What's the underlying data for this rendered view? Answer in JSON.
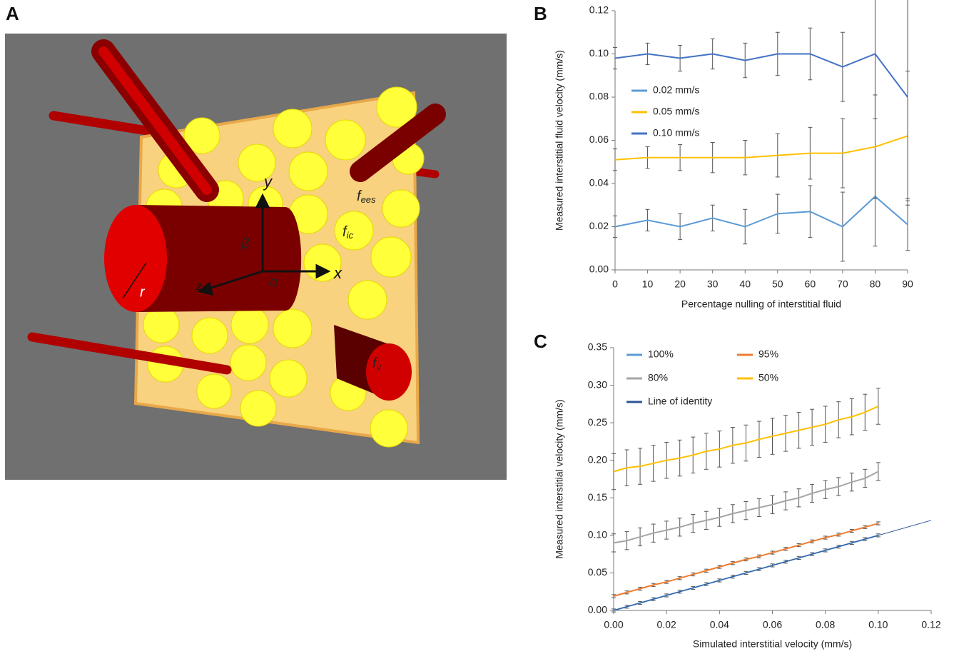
{
  "panel_labels": [
    "A",
    "B",
    "C"
  ],
  "illustration": {
    "axis_x": "x",
    "axis_y": "y",
    "axis_z": "z",
    "angle_beta": "β",
    "angle_alpha": "α",
    "radius": "r",
    "f_ees": {
      "symbol": "f",
      "subscript": "ees"
    },
    "f_ic": {
      "symbol": "f",
      "subscript": "ic"
    },
    "f_v": {
      "symbol": "f",
      "subscript": "v"
    }
  },
  "chart_data": [
    {
      "type": "line",
      "x_label": "Percentage nulling of interstitial fluid",
      "y_label": "Measured interstitial fluid velocity (mm/s)",
      "x": [
        0,
        10,
        20,
        30,
        40,
        50,
        60,
        70,
        80,
        90
      ],
      "xlim": [
        0,
        90
      ],
      "xticks": [
        0,
        10,
        20,
        30,
        40,
        50,
        60,
        70,
        80,
        90
      ],
      "ylim": [
        0,
        0.12
      ],
      "yticks": [
        {
          "value": 0,
          "label": "0.00"
        },
        {
          "value": 0.02,
          "label": "0.02"
        },
        {
          "value": 0.04,
          "label": "0.04"
        },
        {
          "value": 0.06,
          "label": "0.06"
        },
        {
          "value": 0.08,
          "label": "0.08"
        },
        {
          "value": 0.1,
          "label": "0.10"
        },
        {
          "value": 0.12,
          "label": "0.12"
        }
      ],
      "legend": "upper left",
      "legend_columns": 1,
      "grid": false,
      "series": [
        {
          "name": "0.02 mm/s",
          "color": "#5b9bd5",
          "values": [
            0.02,
            0.023,
            0.02,
            0.024,
            0.02,
            0.026,
            0.027,
            0.02,
            0.034,
            0.021
          ],
          "errors": [
            0.005,
            0.005,
            0.006,
            0.006,
            0.008,
            0.009,
            0.012,
            0.016,
            0.023,
            0.012
          ]
        },
        {
          "name": "0.05 mm/s",
          "color": "#ffc000",
          "values": [
            0.051,
            0.052,
            0.052,
            0.052,
            0.052,
            0.053,
            0.054,
            0.054,
            0.057,
            0.062
          ],
          "errors": [
            0.005,
            0.005,
            0.006,
            0.007,
            0.008,
            0.01,
            0.012,
            0.016,
            0.024,
            0.03
          ]
        },
        {
          "name": "0.10 mm/s",
          "color": "#4472c4",
          "values": [
            0.098,
            0.1,
            0.098,
            0.1,
            0.097,
            0.1,
            0.1,
            0.094,
            0.1,
            0.08
          ],
          "errors": [
            0.005,
            0.005,
            0.006,
            0.007,
            0.008,
            0.01,
            0.012,
            0.016,
            0.03,
            0.05
          ]
        }
      ]
    },
    {
      "type": "line",
      "x_label": "Simulated interstitial velocity (mm/s)",
      "y_label": "Measured interstitial velocity (mm/s)",
      "x": [
        0,
        0.005,
        0.01,
        0.015,
        0.02,
        0.025,
        0.03,
        0.035,
        0.04,
        0.045,
        0.05,
        0.055,
        0.06,
        0.065,
        0.07,
        0.075,
        0.08,
        0.085,
        0.09,
        0.095,
        0.1
      ],
      "xlim": [
        0,
        0.12
      ],
      "xticks": [
        {
          "value": 0,
          "label": "0.00"
        },
        {
          "value": 0.02,
          "label": "0.02"
        },
        {
          "value": 0.04,
          "label": "0.04"
        },
        {
          "value": 0.06,
          "label": "0.06"
        },
        {
          "value": 0.08,
          "label": "0.08"
        },
        {
          "value": 0.1,
          "label": "0.10"
        },
        {
          "value": 0.12,
          "label": "0.12"
        }
      ],
      "ylim": [
        0,
        0.35
      ],
      "yticks": [
        {
          "value": 0,
          "label": "0.00"
        },
        {
          "value": 0.05,
          "label": "0.05"
        },
        {
          "value": 0.1,
          "label": "0.10"
        },
        {
          "value": 0.15,
          "label": "0.15"
        },
        {
          "value": 0.2,
          "label": "0.20"
        },
        {
          "value": 0.25,
          "label": "0.25"
        },
        {
          "value": 0.3,
          "label": "0.30"
        },
        {
          "value": 0.35,
          "label": "0.35"
        }
      ],
      "legend": "upper left",
      "legend_columns": 2,
      "grid": false,
      "series": [
        {
          "name": "100%",
          "color": "#5b9bd5",
          "values": [
            0,
            0.005,
            0.01,
            0.015,
            0.02,
            0.025,
            0.03,
            0.035,
            0.04,
            0.045,
            0.05,
            0.055,
            0.06,
            0.065,
            0.07,
            0.075,
            0.08,
            0.085,
            0.09,
            0.095,
            0.1
          ],
          "errors": [
            0.002,
            0.002,
            0.002,
            0.002,
            0.002,
            0.002,
            0.002,
            0.002,
            0.002,
            0.002,
            0.002,
            0.002,
            0.002,
            0.002,
            0.002,
            0.002,
            0.002,
            0.002,
            0.002,
            0.002,
            0.002
          ]
        },
        {
          "name": "95%",
          "color": "#ed7d31",
          "values": [
            0.019,
            0.024,
            0.029,
            0.034,
            0.038,
            0.043,
            0.048,
            0.053,
            0.058,
            0.063,
            0.068,
            0.072,
            0.077,
            0.082,
            0.087,
            0.092,
            0.097,
            0.101,
            0.106,
            0.111,
            0.116
          ],
          "errors": [
            0.002,
            0.002,
            0.002,
            0.002,
            0.002,
            0.002,
            0.002,
            0.002,
            0.002,
            0.002,
            0.002,
            0.002,
            0.002,
            0.002,
            0.002,
            0.002,
            0.002,
            0.002,
            0.002,
            0.002,
            0.002
          ]
        },
        {
          "name": "80%",
          "color": "#a5a5a5",
          "values": [
            0.09,
            0.093,
            0.098,
            0.103,
            0.107,
            0.111,
            0.116,
            0.12,
            0.124,
            0.129,
            0.133,
            0.137,
            0.141,
            0.146,
            0.15,
            0.156,
            0.161,
            0.165,
            0.171,
            0.176,
            0.185
          ],
          "errors": [
            0.012,
            0.012,
            0.012,
            0.012,
            0.012,
            0.012,
            0.012,
            0.012,
            0.012,
            0.012,
            0.012,
            0.012,
            0.012,
            0.012,
            0.012,
            0.012,
            0.012,
            0.012,
            0.012,
            0.012,
            0.012
          ]
        },
        {
          "name": "50%",
          "color": "#ffc000",
          "values": [
            0.185,
            0.19,
            0.192,
            0.196,
            0.2,
            0.203,
            0.207,
            0.212,
            0.215,
            0.22,
            0.223,
            0.228,
            0.232,
            0.236,
            0.24,
            0.244,
            0.248,
            0.254,
            0.258,
            0.264,
            0.272
          ],
          "errors": [
            0.024,
            0.024,
            0.024,
            0.024,
            0.024,
            0.024,
            0.024,
            0.024,
            0.024,
            0.024,
            0.024,
            0.024,
            0.024,
            0.024,
            0.024,
            0.024,
            0.024,
            0.024,
            0.024,
            0.024,
            0.024
          ]
        },
        {
          "name": "Line of identity",
          "color": "#2f5597",
          "x": [
            0,
            0.12
          ],
          "values": [
            0,
            0.12
          ]
        }
      ]
    }
  ]
}
